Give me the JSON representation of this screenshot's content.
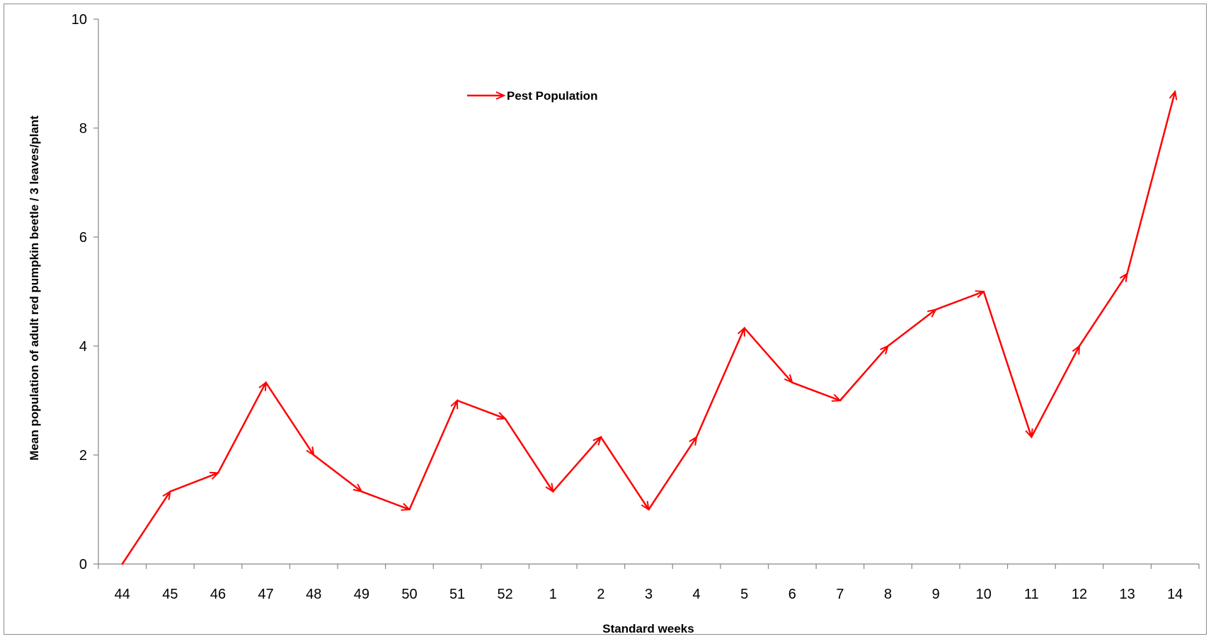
{
  "chart_data": {
    "type": "line",
    "title": "",
    "xlabel": "Standard weeks",
    "ylabel": "Mean population of adult red pumpkin beetle / 3 leaves/plant",
    "ylim": [
      0,
      10
    ],
    "yticks": [
      "0",
      "2",
      "4",
      "6",
      "8",
      "10"
    ],
    "grid": false,
    "legend_position": "top-center",
    "categories": [
      "44",
      "45",
      "46",
      "47",
      "48",
      "49",
      "50",
      "51",
      "52",
      "1",
      "2",
      "3",
      "4",
      "5",
      "6",
      "7",
      "8",
      "9",
      "10",
      "11",
      "12",
      "13",
      "14"
    ],
    "series": [
      {
        "name": "Pest Population",
        "color": "#ff0000",
        "marker": "arrow",
        "values": [
          0,
          1.33,
          1.67,
          3.33,
          2.0,
          1.33,
          1.0,
          3.0,
          2.67,
          1.33,
          2.33,
          1.0,
          2.33,
          4.33,
          3.33,
          3.0,
          4.0,
          4.67,
          5.0,
          2.33,
          4.0,
          5.33,
          8.67
        ]
      }
    ]
  }
}
